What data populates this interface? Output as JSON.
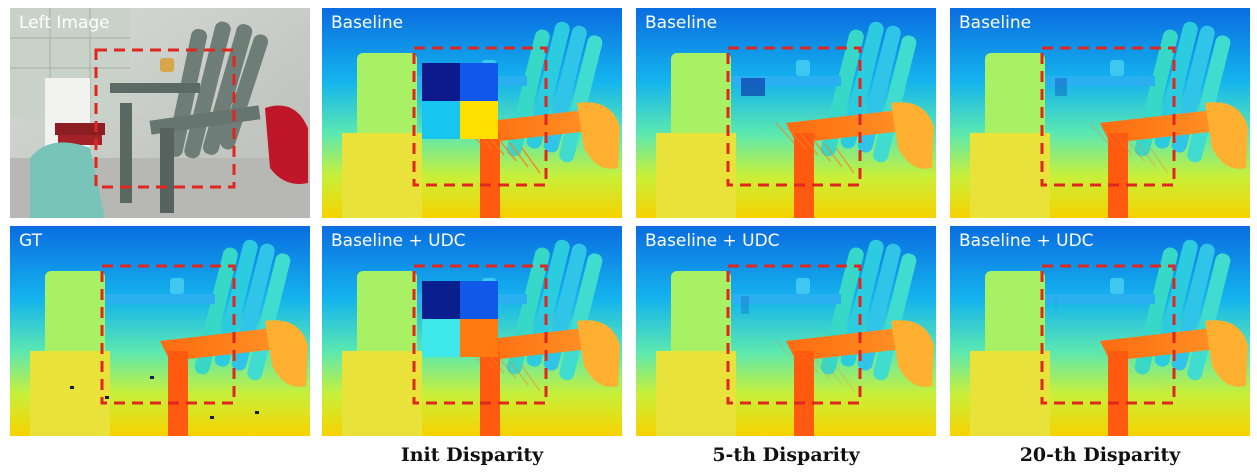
{
  "panels": [
    {
      "label": "Left Image",
      "kind": "photo"
    },
    {
      "label": "Baseline",
      "kind": "disp",
      "quad": [
        "#0d1a8c",
        "#0f58ea",
        "#18c4f0",
        "#ffdf00"
      ],
      "noise": 0.8
    },
    {
      "label": "Baseline",
      "kind": "disp",
      "noise": 0.6
    },
    {
      "label": "Baseline",
      "kind": "disp",
      "noise": 0.3
    },
    {
      "label": "GT",
      "kind": "gt"
    },
    {
      "label": "Baseline + UDC",
      "kind": "disp",
      "quad": [
        "#0a1f8e",
        "#1058e8",
        "#3ee8ea",
        "#ff7a10"
      ],
      "noise": 0.4
    },
    {
      "label": "Baseline + UDC",
      "kind": "disp",
      "noise": 0.2
    },
    {
      "label": "Baseline + UDC",
      "kind": "disp",
      "noise": 0.05
    }
  ],
  "captions": [
    "Init Disparity",
    "5-th Disparity",
    "20-th Disparity"
  ],
  "colors": {
    "highlight_box": "#e0261e"
  }
}
